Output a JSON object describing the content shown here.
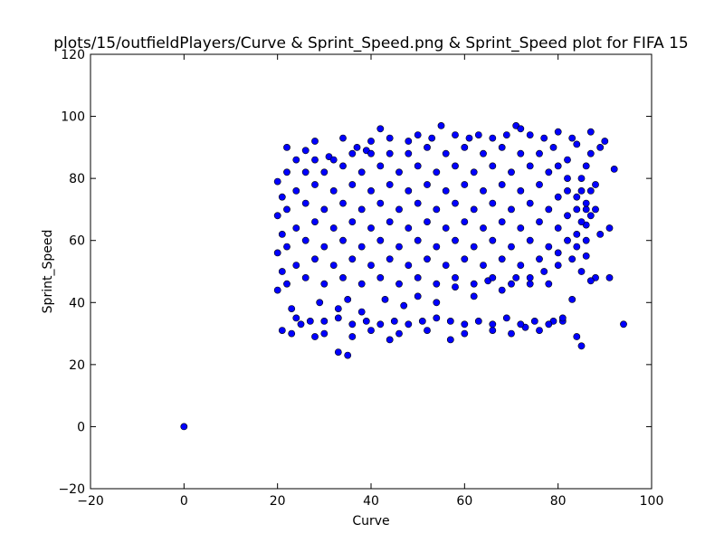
{
  "chart_data": {
    "type": "scatter",
    "title": "plots/15/outfieldPlayers/Curve & Sprint_Speed.png & Sprint_Speed plot for FIFA 15",
    "xlabel": "Curve",
    "ylabel": "Sprint_Speed",
    "xlim": [
      -20,
      100
    ],
    "ylim": [
      -20,
      120
    ],
    "xticks": [
      -20,
      0,
      20,
      40,
      60,
      80,
      100
    ],
    "yticks": [
      -20,
      0,
      20,
      40,
      60,
      80,
      100,
      120
    ],
    "xtick_labels": [
      "−20",
      "0",
      "20",
      "40",
      "60",
      "80",
      "100"
    ],
    "ytick_labels": [
      "−20",
      "0",
      "20",
      "40",
      "60",
      "80",
      "100",
      "120"
    ],
    "grid": false,
    "legend": "none",
    "marker_color": "#0000ff",
    "marker_edge_color": "#000000",
    "points": [
      [
        0,
        0
      ],
      [
        94,
        33
      ],
      [
        85,
        26
      ],
      [
        33,
        24
      ],
      [
        35,
        23
      ],
      [
        88,
        48
      ],
      [
        92,
        83
      ],
      [
        91,
        64
      ],
      [
        90,
        92
      ],
      [
        87,
        95
      ],
      [
        55,
        97
      ],
      [
        71,
        97
      ],
      [
        42,
        96
      ],
      [
        80,
        95
      ],
      [
        83,
        93
      ],
      [
        89,
        90
      ],
      [
        86,
        84
      ],
      [
        89,
        62
      ],
      [
        86,
        55
      ],
      [
        83,
        41
      ],
      [
        84,
        29
      ],
      [
        91,
        48
      ],
      [
        20,
        79
      ],
      [
        21,
        31
      ],
      [
        23,
        30
      ],
      [
        22,
        90
      ],
      [
        25,
        33
      ],
      [
        28,
        29
      ],
      [
        30,
        30
      ],
      [
        36,
        29
      ],
      [
        40,
        31
      ],
      [
        44,
        28
      ],
      [
        46,
        30
      ],
      [
        52,
        31
      ],
      [
        57,
        28
      ],
      [
        60,
        30
      ],
      [
        66,
        31
      ],
      [
        70,
        30
      ],
      [
        73,
        32
      ],
      [
        76,
        31
      ],
      [
        79,
        34
      ],
      [
        81,
        34
      ],
      [
        85,
        50
      ],
      [
        87,
        47
      ],
      [
        85,
        76
      ],
      [
        86,
        70
      ],
      [
        88,
        78
      ],
      [
        87,
        88
      ],
      [
        84,
        91
      ],
      [
        82,
        86
      ],
      [
        26,
        89
      ],
      [
        28,
        92
      ],
      [
        31,
        87
      ],
      [
        34,
        93
      ],
      [
        37,
        90
      ],
      [
        39,
        89
      ],
      [
        40,
        92
      ],
      [
        44,
        93
      ],
      [
        48,
        92
      ],
      [
        50,
        94
      ],
      [
        53,
        93
      ],
      [
        58,
        94
      ],
      [
        61,
        93
      ],
      [
        63,
        94
      ],
      [
        66,
        93
      ],
      [
        69,
        94
      ],
      [
        72,
        96
      ],
      [
        74,
        94
      ],
      [
        77,
        93
      ],
      [
        79,
        90
      ],
      [
        24,
        35
      ],
      [
        27,
        34
      ],
      [
        30,
        34
      ],
      [
        33,
        35
      ],
      [
        36,
        33
      ],
      [
        39,
        34
      ],
      [
        42,
        33
      ],
      [
        45,
        34
      ],
      [
        48,
        33
      ],
      [
        51,
        34
      ],
      [
        54,
        35
      ],
      [
        57,
        34
      ],
      [
        60,
        33
      ],
      [
        63,
        34
      ],
      [
        66,
        33
      ],
      [
        69,
        35
      ],
      [
        72,
        33
      ],
      [
        75,
        34
      ],
      [
        78,
        33
      ],
      [
        81,
        35
      ],
      [
        23,
        38
      ],
      [
        29,
        40
      ],
      [
        33,
        38
      ],
      [
        35,
        41
      ],
      [
        38,
        37
      ],
      [
        43,
        41
      ],
      [
        47,
        39
      ],
      [
        50,
        42
      ],
      [
        54,
        40
      ],
      [
        58,
        45
      ],
      [
        62,
        42
      ],
      [
        65,
        47
      ],
      [
        68,
        44
      ],
      [
        71,
        48
      ],
      [
        74,
        46
      ],
      [
        77,
        50
      ],
      [
        80,
        52
      ],
      [
        83,
        54
      ],
      [
        84,
        58
      ],
      [
        86,
        65
      ],
      [
        20,
        44
      ],
      [
        21,
        50
      ],
      [
        20,
        56
      ],
      [
        21,
        62
      ],
      [
        20,
        68
      ],
      [
        21,
        74
      ],
      [
        22,
        46
      ],
      [
        22,
        58
      ],
      [
        22,
        70
      ],
      [
        22,
        82
      ],
      [
        24,
        52
      ],
      [
        24,
        64
      ],
      [
        24,
        76
      ],
      [
        24,
        86
      ],
      [
        26,
        48
      ],
      [
        26,
        60
      ],
      [
        26,
        72
      ],
      [
        26,
        82
      ],
      [
        28,
        54
      ],
      [
        28,
        66
      ],
      [
        28,
        78
      ],
      [
        28,
        86
      ],
      [
        30,
        46
      ],
      [
        30,
        58
      ],
      [
        30,
        70
      ],
      [
        30,
        82
      ],
      [
        32,
        52
      ],
      [
        32,
        64
      ],
      [
        32,
        76
      ],
      [
        32,
        86
      ],
      [
        34,
        48
      ],
      [
        34,
        60
      ],
      [
        34,
        72
      ],
      [
        34,
        84
      ],
      [
        36,
        54
      ],
      [
        36,
        66
      ],
      [
        36,
        78
      ],
      [
        36,
        88
      ],
      [
        38,
        46
      ],
      [
        38,
        58
      ],
      [
        38,
        70
      ],
      [
        38,
        82
      ],
      [
        40,
        52
      ],
      [
        40,
        64
      ],
      [
        40,
        76
      ],
      [
        40,
        88
      ],
      [
        42,
        48
      ],
      [
        42,
        60
      ],
      [
        42,
        72
      ],
      [
        42,
        84
      ],
      [
        44,
        54
      ],
      [
        44,
        66
      ],
      [
        44,
        78
      ],
      [
        44,
        88
      ],
      [
        46,
        46
      ],
      [
        46,
        58
      ],
      [
        46,
        70
      ],
      [
        46,
        82
      ],
      [
        48,
        52
      ],
      [
        48,
        64
      ],
      [
        48,
        76
      ],
      [
        48,
        88
      ],
      [
        50,
        48
      ],
      [
        50,
        60
      ],
      [
        50,
        72
      ],
      [
        50,
        84
      ],
      [
        52,
        54
      ],
      [
        52,
        66
      ],
      [
        52,
        78
      ],
      [
        52,
        90
      ],
      [
        54,
        46
      ],
      [
        54,
        58
      ],
      [
        54,
        70
      ],
      [
        54,
        82
      ],
      [
        56,
        52
      ],
      [
        56,
        64
      ],
      [
        56,
        76
      ],
      [
        56,
        88
      ],
      [
        58,
        48
      ],
      [
        58,
        60
      ],
      [
        58,
        72
      ],
      [
        58,
        84
      ],
      [
        60,
        54
      ],
      [
        60,
        66
      ],
      [
        60,
        78
      ],
      [
        60,
        90
      ],
      [
        62,
        46
      ],
      [
        62,
        58
      ],
      [
        62,
        70
      ],
      [
        62,
        82
      ],
      [
        64,
        52
      ],
      [
        64,
        64
      ],
      [
        64,
        76
      ],
      [
        64,
        88
      ],
      [
        66,
        48
      ],
      [
        66,
        60
      ],
      [
        66,
        72
      ],
      [
        66,
        84
      ],
      [
        68,
        54
      ],
      [
        68,
        66
      ],
      [
        68,
        78
      ],
      [
        68,
        90
      ],
      [
        70,
        46
      ],
      [
        70,
        58
      ],
      [
        70,
        70
      ],
      [
        70,
        82
      ],
      [
        72,
        52
      ],
      [
        72,
        64
      ],
      [
        72,
        76
      ],
      [
        72,
        88
      ],
      [
        74,
        48
      ],
      [
        74,
        60
      ],
      [
        74,
        72
      ],
      [
        74,
        84
      ],
      [
        76,
        54
      ],
      [
        76,
        66
      ],
      [
        76,
        78
      ],
      [
        76,
        88
      ],
      [
        78,
        46
      ],
      [
        78,
        58
      ],
      [
        78,
        70
      ],
      [
        78,
        82
      ],
      [
        80,
        56
      ],
      [
        80,
        64
      ],
      [
        80,
        74
      ],
      [
        80,
        84
      ],
      [
        82,
        60
      ],
      [
        82,
        68
      ],
      [
        82,
        76
      ],
      [
        82,
        80
      ],
      [
        84,
        62
      ],
      [
        84,
        70
      ],
      [
        84,
        74
      ],
      [
        85,
        66
      ],
      [
        86,
        60
      ],
      [
        86,
        72
      ],
      [
        87,
        68
      ],
      [
        87,
        76
      ],
      [
        88,
        70
      ],
      [
        85,
        80
      ]
    ]
  }
}
